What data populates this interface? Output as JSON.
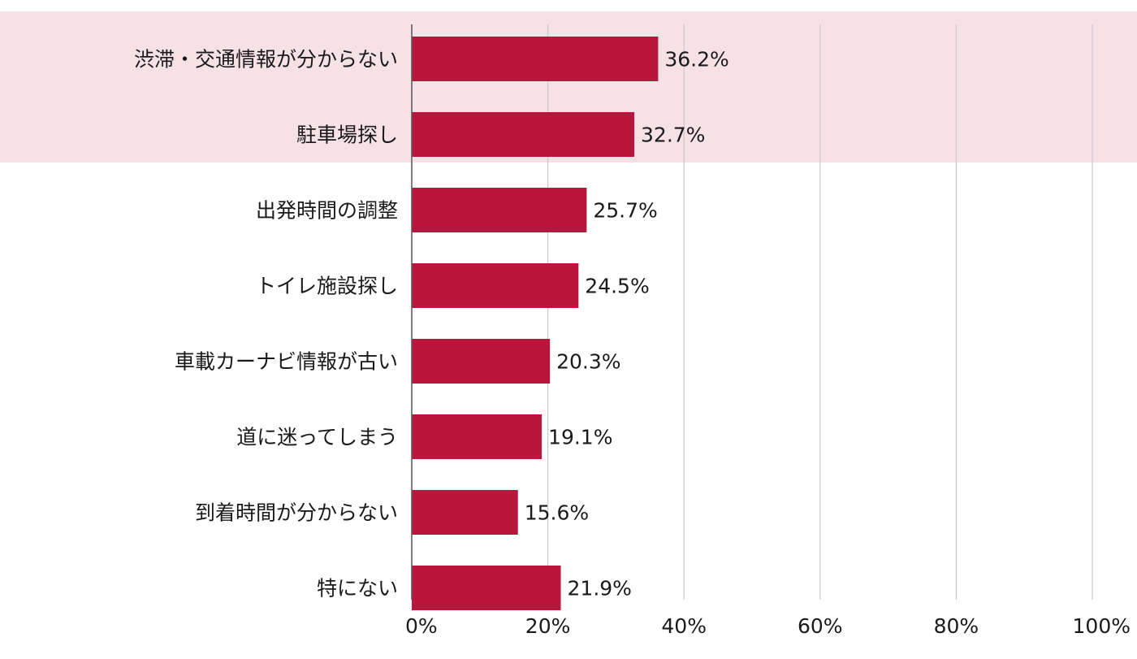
{
  "chart_data": {
    "type": "bar",
    "orientation": "horizontal",
    "categories": [
      "渋滞・交通情報が分からない",
      "駐車場探し",
      "出発時間の調整",
      "トイレ施設探し",
      "車載カーナビ情報が古い",
      "道に迷ってしまう",
      "到着時間が分からない",
      "特にない"
    ],
    "values": [
      36.2,
      32.7,
      25.7,
      24.5,
      20.3,
      19.1,
      15.6,
      21.9
    ],
    "value_labels": [
      "36.2%",
      "32.7%",
      "25.7%",
      "24.5%",
      "20.3%",
      "19.1%",
      "15.6%",
      "21.9%"
    ],
    "xlim": [
      0,
      100
    ],
    "ticks": [
      0,
      20,
      40,
      60,
      80,
      100
    ],
    "tick_labels": [
      "0%",
      "20%",
      "40%",
      "60%",
      "80%",
      "100%"
    ],
    "highlighted_categories": [
      0,
      1
    ],
    "grid": "vertical",
    "legend": "none",
    "colors": {
      "bar": "#b8163c",
      "highlight_band": "#f5e1e6",
      "grid": "#c9c9c9",
      "axis": "#555555"
    }
  }
}
